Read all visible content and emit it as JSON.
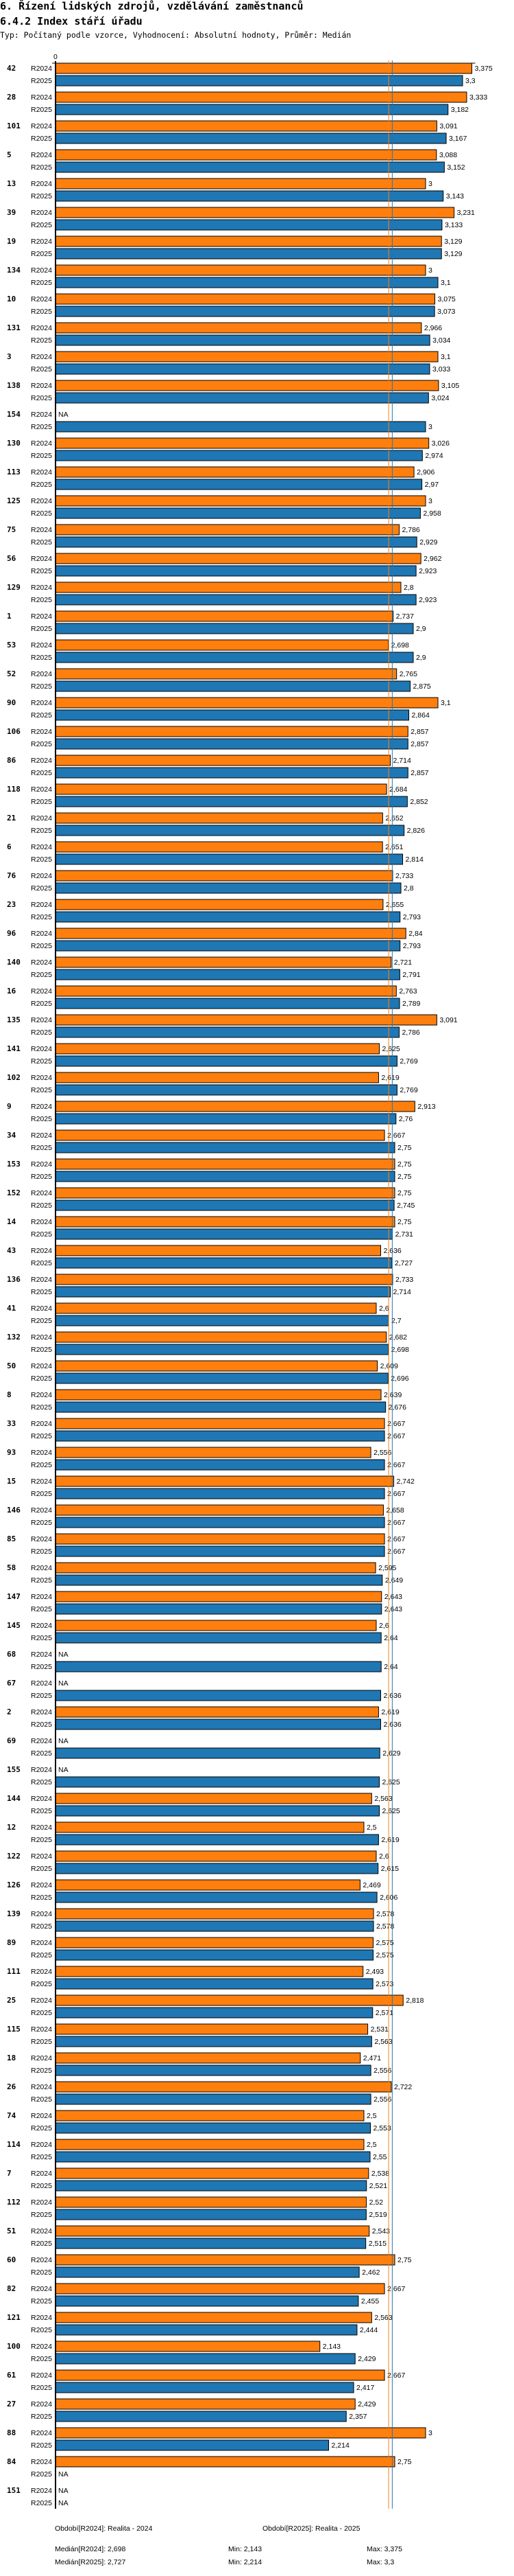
{
  "header": {
    "title": "6. Řízení lidských zdrojů, vzdělávání zaměstnanců",
    "subtitle": "6.4.2 Index stáří úřadu",
    "type_line": "Typ: Počítaný podle vzorce, Vyhodnocení: Absolutní hodnoty, Průměr: Medián"
  },
  "colors": {
    "R2024": "#ff7f0e",
    "R2025": "#1f77b4"
  },
  "chart_data": {
    "type": "bar",
    "orientation": "horizontal",
    "title": "6.4.2 Index stáří úřadu",
    "axis_zero_label": "0",
    "xlim": [
      0,
      3.375
    ],
    "series_names": [
      "R2024",
      "R2025"
    ],
    "na_label": "NA",
    "medians": {
      "R2024": 2.698,
      "R2025": 2.727
    },
    "groups": [
      {
        "id": "42",
        "R2024": "3,375",
        "R2025": "3,3"
      },
      {
        "id": "28",
        "R2024": "3,333",
        "R2025": "3,182"
      },
      {
        "id": "101",
        "R2024": "3,091",
        "R2025": "3,167"
      },
      {
        "id": "5",
        "R2024": "3,088",
        "R2025": "3,152"
      },
      {
        "id": "13",
        "R2024": "3",
        "R2025": "3,143"
      },
      {
        "id": "39",
        "R2024": "3,231",
        "R2025": "3,133"
      },
      {
        "id": "19",
        "R2024": "3,129",
        "R2025": "3,129"
      },
      {
        "id": "134",
        "R2024": "3",
        "R2025": "3,1"
      },
      {
        "id": "10",
        "R2024": "3,075",
        "R2025": "3,073"
      },
      {
        "id": "131",
        "R2024": "2,966",
        "R2025": "3,034"
      },
      {
        "id": "3",
        "R2024": "3,1",
        "R2025": "3,033"
      },
      {
        "id": "138",
        "R2024": "3,105",
        "R2025": "3,024"
      },
      {
        "id": "154",
        "R2024": "NA",
        "R2025": "3"
      },
      {
        "id": "130",
        "R2024": "3,026",
        "R2025": "2,974"
      },
      {
        "id": "113",
        "R2024": "2,906",
        "R2025": "2,97"
      },
      {
        "id": "125",
        "R2024": "3",
        "R2025": "2,958"
      },
      {
        "id": "75",
        "R2024": "2,786",
        "R2025": "2,929"
      },
      {
        "id": "56",
        "R2024": "2,962",
        "R2025": "2,923"
      },
      {
        "id": "129",
        "R2024": "2,8",
        "R2025": "2,923"
      },
      {
        "id": "1",
        "R2024": "2,737",
        "R2025": "2,9"
      },
      {
        "id": "53",
        "R2024": "2,698",
        "R2025": "2,9"
      },
      {
        "id": "52",
        "R2024": "2,765",
        "R2025": "2,875"
      },
      {
        "id": "90",
        "R2024": "3,1",
        "R2025": "2,864"
      },
      {
        "id": "106",
        "R2024": "2,857",
        "R2025": "2,857"
      },
      {
        "id": "86",
        "R2024": "2,714",
        "R2025": "2,857"
      },
      {
        "id": "118",
        "R2024": "2,684",
        "R2025": "2,852"
      },
      {
        "id": "21",
        "R2024": "2,652",
        "R2025": "2,826"
      },
      {
        "id": "6",
        "R2024": "2,651",
        "R2025": "2,814"
      },
      {
        "id": "76",
        "R2024": "2,733",
        "R2025": "2,8"
      },
      {
        "id": "23",
        "R2024": "2,655",
        "R2025": "2,793"
      },
      {
        "id": "96",
        "R2024": "2,84",
        "R2025": "2,793"
      },
      {
        "id": "140",
        "R2024": "2,721",
        "R2025": "2,791"
      },
      {
        "id": "16",
        "R2024": "2,763",
        "R2025": "2,789"
      },
      {
        "id": "135",
        "R2024": "3,091",
        "R2025": "2,786"
      },
      {
        "id": "141",
        "R2024": "2,625",
        "R2025": "2,769"
      },
      {
        "id": "102",
        "R2024": "2,619",
        "R2025": "2,769"
      },
      {
        "id": "9",
        "R2024": "2,913",
        "R2025": "2,76"
      },
      {
        "id": "34",
        "R2024": "2,667",
        "R2025": "2,75"
      },
      {
        "id": "153",
        "R2024": "2,75",
        "R2025": "2,75"
      },
      {
        "id": "152",
        "R2024": "2,75",
        "R2025": "2,745"
      },
      {
        "id": "14",
        "R2024": "2,75",
        "R2025": "2,731"
      },
      {
        "id": "43",
        "R2024": "2,636",
        "R2025": "2,727"
      },
      {
        "id": "136",
        "R2024": "2,733",
        "R2025": "2,714"
      },
      {
        "id": "41",
        "R2024": "2,6",
        "R2025": "2,7"
      },
      {
        "id": "132",
        "R2024": "2,682",
        "R2025": "2,698"
      },
      {
        "id": "50",
        "R2024": "2,609",
        "R2025": "2,696"
      },
      {
        "id": "8",
        "R2024": "2,639",
        "R2025": "2,676"
      },
      {
        "id": "33",
        "R2024": "2,667",
        "R2025": "2,667"
      },
      {
        "id": "93",
        "R2024": "2,556",
        "R2025": "2,667"
      },
      {
        "id": "15",
        "R2024": "2,742",
        "R2025": "2,667"
      },
      {
        "id": "146",
        "R2024": "2,658",
        "R2025": "2,667"
      },
      {
        "id": "85",
        "R2024": "2,667",
        "R2025": "2,667"
      },
      {
        "id": "58",
        "R2024": "2,595",
        "R2025": "2,649"
      },
      {
        "id": "147",
        "R2024": "2,643",
        "R2025": "2,643"
      },
      {
        "id": "145",
        "R2024": "2,6",
        "R2025": "2,64"
      },
      {
        "id": "68",
        "R2024": "NA",
        "R2025": "2,64"
      },
      {
        "id": "67",
        "R2024": "NA",
        "R2025": "2,636"
      },
      {
        "id": "2",
        "R2024": "2,619",
        "R2025": "2,636"
      },
      {
        "id": "69",
        "R2024": "NA",
        "R2025": "2,629"
      },
      {
        "id": "155",
        "R2024": "NA",
        "R2025": "2,625"
      },
      {
        "id": "144",
        "R2024": "2,563",
        "R2025": "2,625"
      },
      {
        "id": "12",
        "R2024": "2,5",
        "R2025": "2,619"
      },
      {
        "id": "122",
        "R2024": "2,6",
        "R2025": "2,615"
      },
      {
        "id": "126",
        "R2024": "2,469",
        "R2025": "2,606"
      },
      {
        "id": "139",
        "R2024": "2,578",
        "R2025": "2,578"
      },
      {
        "id": "89",
        "R2024": "2,575",
        "R2025": "2,575"
      },
      {
        "id": "111",
        "R2024": "2,493",
        "R2025": "2,573"
      },
      {
        "id": "25",
        "R2024": "2,818",
        "R2025": "2,571"
      },
      {
        "id": "115",
        "R2024": "2,531",
        "R2025": "2,563"
      },
      {
        "id": "18",
        "R2024": "2,471",
        "R2025": "2,556"
      },
      {
        "id": "26",
        "R2024": "2,722",
        "R2025": "2,556"
      },
      {
        "id": "74",
        "R2024": "2,5",
        "R2025": "2,553"
      },
      {
        "id": "114",
        "R2024": "2,5",
        "R2025": "2,55"
      },
      {
        "id": "7",
        "R2024": "2,538",
        "R2025": "2,521"
      },
      {
        "id": "112",
        "R2024": "2,52",
        "R2025": "2,519"
      },
      {
        "id": "51",
        "R2024": "2,543",
        "R2025": "2,515"
      },
      {
        "id": "60",
        "R2024": "2,75",
        "R2025": "2,462"
      },
      {
        "id": "82",
        "R2024": "2,667",
        "R2025": "2,455"
      },
      {
        "id": "121",
        "R2024": "2,563",
        "R2025": "2,444"
      },
      {
        "id": "100",
        "R2024": "2,143",
        "R2025": "2,429"
      },
      {
        "id": "61",
        "R2024": "2,667",
        "R2025": "2,417"
      },
      {
        "id": "27",
        "R2024": "2,429",
        "R2025": "2,357"
      },
      {
        "id": "88",
        "R2024": "3",
        "R2025": "2,214"
      },
      {
        "id": "84",
        "R2024": "2,75",
        "R2025": "NA"
      },
      {
        "id": "151",
        "R2024": "NA",
        "R2025": "NA"
      }
    ]
  },
  "footer": {
    "period_2024": "Období[R2024]: Realita - 2024",
    "period_2025": "Období[R2025]: Realita - 2025",
    "median_2024": "Medián[R2024]: 2,698",
    "min_2024": "Min: 2,143",
    "max_2024": "Max: 3,375",
    "median_2025": "Medián[R2025]: 2,727",
    "min_2025": "Min: 2,214",
    "max_2025": "Max: 3,3"
  }
}
